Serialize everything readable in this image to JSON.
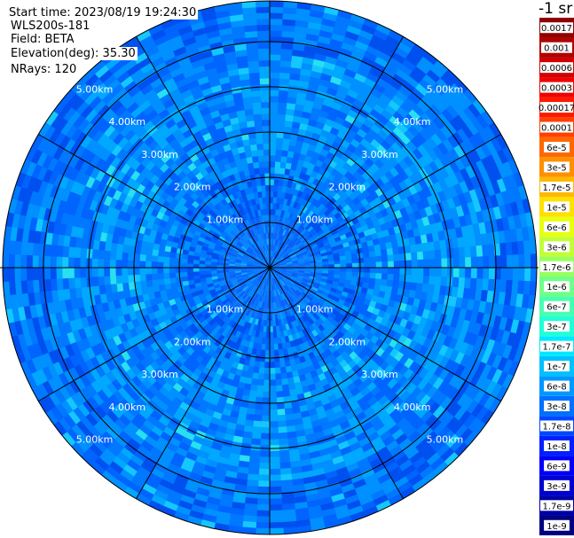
{
  "info": {
    "start_time": "Start time: 2023/08/19 19:24:30",
    "device": "WLS200s-181",
    "field": "Field: BETA",
    "elevation": "Elevation(deg): 35.30",
    "nrays": "NRays: 120"
  },
  "chart_data": {
    "type": "heatmap",
    "projection": "polar-ppi",
    "field": "BETA",
    "colorbar_title": "-1 sr",
    "range_rings_km": [
      1,
      2,
      3,
      4,
      5
    ],
    "range_ring_labels": [
      "1.00km",
      "2.00km",
      "3.00km",
      "4.00km",
      "5.00km"
    ],
    "max_range_km": 5.9,
    "radial_line_step_deg": 30,
    "colorbar_labels": [
      "1e-9",
      "1.7e-9",
      "3e-9",
      "6e-9",
      "1e-8",
      "1.7e-8",
      "3e-8",
      "6e-8",
      "1e-7",
      "1.7e-7",
      "3e-7",
      "6e-7",
      "1e-6",
      "1.7e-6",
      "3e-6",
      "6e-6",
      "1e-5",
      "1.7e-5",
      "3e-5",
      "6e-5",
      "0.0001",
      "0.00017",
      "0.0003",
      "0.0006",
      "0.001",
      "0.0017"
    ],
    "colorbar_colors": [
      "#000080",
      "#0000a8",
      "#0000d0",
      "#0000f8",
      "#0020ff",
      "#0048ff",
      "#0070ff",
      "#0098ff",
      "#00c0ff",
      "#00e8ff",
      "#20ffd8",
      "#48ffb0",
      "#70ff88",
      "#98ff60",
      "#c0ff38",
      "#e8ff10",
      "#ffe000",
      "#ffb800",
      "#ff9000",
      "#ff6800",
      "#ff4000",
      "#ff1800",
      "#f00000",
      "#d00000",
      "#b00000",
      "#900000"
    ]
  }
}
